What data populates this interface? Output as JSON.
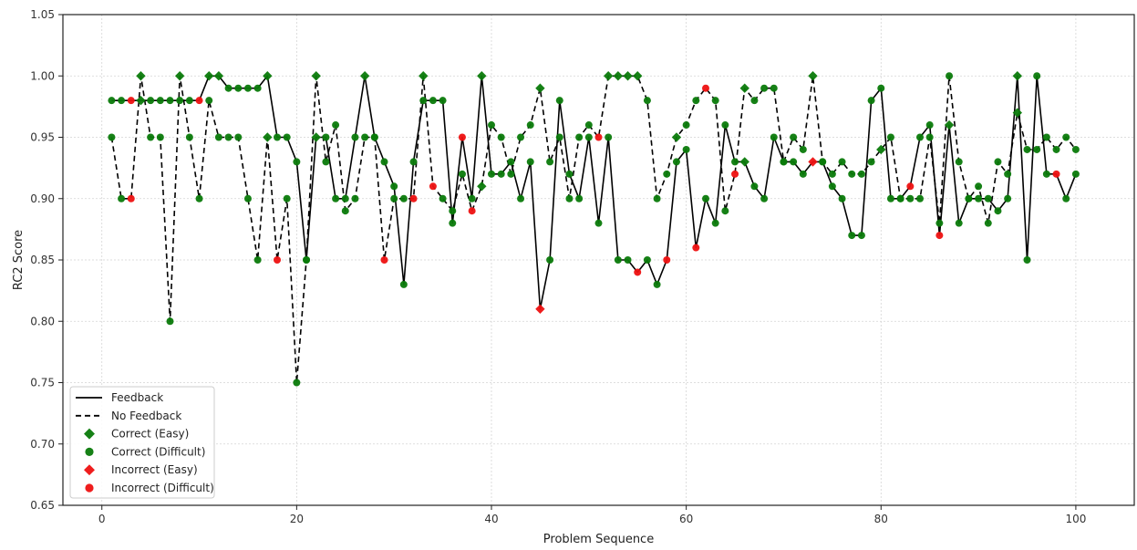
{
  "chart_data": {
    "type": "line",
    "title": "",
    "xlabel": "Problem Sequence",
    "ylabel": "RC2 Score",
    "xlim": [
      -4,
      106
    ],
    "ylim": [
      0.65,
      1.05
    ],
    "xticks": [
      0,
      20,
      40,
      60,
      80,
      100
    ],
    "xtick_labels": [
      "0",
      "20",
      "40",
      "60",
      "80",
      "100"
    ],
    "yticks": [
      0.65,
      0.7,
      0.75,
      0.8,
      0.85,
      0.9,
      0.95,
      1.0,
      1.05
    ],
    "ytick_labels": [
      "0.65",
      "0.70",
      "0.75",
      "0.80",
      "0.85",
      "0.90",
      "0.95",
      "1.00",
      "1.05"
    ],
    "grid": true,
    "legend_position": "lower-left",
    "colors": {
      "line": "#000000",
      "correct": "#0a7a0a",
      "incorrect": "#ee1111"
    },
    "legend": [
      {
        "label": "Feedback",
        "kind": "line-solid"
      },
      {
        "label": "No Feedback",
        "kind": "line-dashed"
      },
      {
        "label": "Correct (Easy)",
        "kind": "diamond",
        "color": "#0a7a0a"
      },
      {
        "label": "Correct (Difficult)",
        "kind": "circle",
        "color": "#0a7a0a"
      },
      {
        "label": "Incorrect (Easy)",
        "kind": "diamond",
        "color": "#ee1111"
      },
      {
        "label": "Incorrect (Difficult)",
        "kind": "circle",
        "color": "#ee1111"
      }
    ],
    "series": [
      {
        "name": "Feedback",
        "style": "solid",
        "x": [
          1,
          2,
          3,
          4,
          5,
          6,
          7,
          8,
          9,
          10,
          11,
          12,
          13,
          14,
          15,
          16,
          17,
          18,
          19,
          20,
          21,
          22,
          23,
          24,
          25,
          26,
          27,
          28,
          29,
          30,
          31,
          32,
          33,
          34,
          35,
          36,
          37,
          38,
          39,
          40,
          41,
          42,
          43,
          44,
          45,
          46,
          47,
          48,
          49,
          50,
          51,
          52,
          53,
          54,
          55,
          56,
          57,
          58,
          59,
          60,
          61,
          62,
          63,
          64,
          65,
          66,
          67,
          68,
          69,
          70,
          71,
          72,
          73,
          74,
          75,
          76,
          77,
          78,
          79,
          80,
          81,
          82,
          83,
          84,
          85,
          86,
          87,
          88,
          89,
          90,
          91,
          92,
          93,
          94,
          95,
          96,
          97,
          98,
          99,
          100
        ],
        "y": [
          0.98,
          0.98,
          0.98,
          0.98,
          0.98,
          0.98,
          0.98,
          0.98,
          0.98,
          0.98,
          1.0,
          1.0,
          0.99,
          0.99,
          0.99,
          0.99,
          1.0,
          0.95,
          0.95,
          0.93,
          0.85,
          0.95,
          0.95,
          0.9,
          0.9,
          0.95,
          1.0,
          0.95,
          0.93,
          0.91,
          0.83,
          0.93,
          0.98,
          0.98,
          0.98,
          0.88,
          0.95,
          0.9,
          1.0,
          0.92,
          0.92,
          0.93,
          0.9,
          0.93,
          0.81,
          0.85,
          0.98,
          0.92,
          0.9,
          0.95,
          0.88,
          0.95,
          0.85,
          0.85,
          0.84,
          0.85,
          0.83,
          0.85,
          0.93,
          0.94,
          0.86,
          0.9,
          0.88,
          0.96,
          0.93,
          0.93,
          0.91,
          0.9,
          0.95,
          0.93,
          0.93,
          0.92,
          0.93,
          0.93,
          0.91,
          0.9,
          0.87,
          0.87,
          0.98,
          0.99,
          0.9,
          0.9,
          0.91,
          0.95,
          0.96,
          0.87,
          0.96,
          0.88,
          0.9,
          0.9,
          0.9,
          0.89,
          0.9,
          1.0,
          0.85,
          1.0,
          0.92,
          0.92,
          0.9,
          0.92
        ],
        "marker": [
          "cd",
          "cd",
          "id",
          "ce",
          "cd",
          "cd",
          "cd",
          "cd",
          "cd",
          "id",
          "ce",
          "ce",
          "cd",
          "cd",
          "cd",
          "cd",
          "ce",
          "cd",
          "cd",
          "cd",
          "cd",
          "ce",
          "cd",
          "cd",
          "cd",
          "cd",
          "ce",
          "cd",
          "cd",
          "cd",
          "cd",
          "cd",
          "cd",
          "cd",
          "cd",
          "cd",
          "id",
          "cd",
          "ce",
          "cd",
          "cd",
          "cd",
          "cd",
          "cd",
          "ie",
          "cd",
          "cd",
          "cd",
          "cd",
          "cd",
          "cd",
          "cd",
          "cd",
          "cd",
          "id",
          "cd",
          "cd",
          "id",
          "cd",
          "cd",
          "id",
          "cd",
          "cd",
          "cd",
          "cd",
          "ce",
          "cd",
          "cd",
          "cd",
          "cd",
          "cd",
          "cd",
          "ie",
          "cd",
          "cd",
          "cd",
          "cd",
          "cd",
          "cd",
          "cd",
          "cd",
          "cd",
          "id",
          "cd",
          "cd",
          "id",
          "ce",
          "cd",
          "cd",
          "cd",
          "cd",
          "cd",
          "cd",
          "ce",
          "cd",
          "cd",
          "cd",
          "id",
          "cd",
          "cd"
        ]
      },
      {
        "name": "No Feedback",
        "style": "dashed",
        "x": [
          1,
          2,
          3,
          4,
          5,
          6,
          7,
          8,
          9,
          10,
          11,
          12,
          13,
          14,
          15,
          16,
          17,
          18,
          19,
          20,
          21,
          22,
          23,
          24,
          25,
          26,
          27,
          28,
          29,
          30,
          31,
          32,
          33,
          34,
          35,
          36,
          37,
          38,
          39,
          40,
          41,
          42,
          43,
          44,
          45,
          46,
          47,
          48,
          49,
          50,
          51,
          52,
          53,
          54,
          55,
          56,
          57,
          58,
          59,
          60,
          61,
          62,
          63,
          64,
          65,
          66,
          67,
          68,
          69,
          70,
          71,
          72,
          73,
          74,
          75,
          76,
          77,
          78,
          79,
          80,
          81,
          82,
          83,
          84,
          85,
          86,
          87,
          88,
          89,
          90,
          91,
          92,
          93,
          94,
          95,
          96,
          97,
          98,
          99,
          100
        ],
        "y": [
          0.95,
          0.9,
          0.9,
          1.0,
          0.95,
          0.95,
          0.8,
          1.0,
          0.95,
          0.9,
          0.98,
          0.95,
          0.95,
          0.95,
          0.9,
          0.85,
          0.95,
          0.85,
          0.9,
          0.75,
          0.85,
          1.0,
          0.93,
          0.96,
          0.89,
          0.9,
          0.95,
          0.95,
          0.85,
          0.9,
          0.9,
          0.9,
          1.0,
          0.91,
          0.9,
          0.89,
          0.92,
          0.89,
          0.91,
          0.96,
          0.95,
          0.92,
          0.95,
          0.96,
          0.99,
          0.93,
          0.95,
          0.9,
          0.95,
          0.96,
          0.95,
          1.0,
          1.0,
          1.0,
          1.0,
          0.98,
          0.9,
          0.92,
          0.95,
          0.96,
          0.98,
          0.99,
          0.98,
          0.89,
          0.92,
          0.99,
          0.98,
          0.99,
          0.99,
          0.93,
          0.95,
          0.94,
          1.0,
          0.93,
          0.92,
          0.93,
          0.92,
          0.92,
          0.93,
          0.94,
          0.95,
          0.9,
          0.9,
          0.9,
          0.95,
          0.88,
          1.0,
          0.93,
          0.9,
          0.91,
          0.88,
          0.93,
          0.92,
          0.97,
          0.94,
          0.94,
          0.95,
          0.94,
          0.95,
          0.94
        ],
        "marker": [
          "cd",
          "cd",
          "id",
          "ce",
          "cd",
          "cd",
          "cd",
          "ce",
          "cd",
          "cd",
          "cd",
          "cd",
          "cd",
          "cd",
          "cd",
          "cd",
          "ce",
          "id",
          "cd",
          "cd",
          "cd",
          "ce",
          "cd",
          "cd",
          "cd",
          "cd",
          "cd",
          "cd",
          "id",
          "cd",
          "cd",
          "id",
          "ce",
          "id",
          "cd",
          "cd",
          "cd",
          "id",
          "ce",
          "cd",
          "cd",
          "cd",
          "cd",
          "cd",
          "ce",
          "cd",
          "cd",
          "cd",
          "cd",
          "cd",
          "id",
          "ce",
          "ce",
          "ce",
          "ce",
          "cd",
          "cd",
          "cd",
          "ce",
          "cd",
          "cd",
          "id",
          "cd",
          "cd",
          "id",
          "ce",
          "cd",
          "cd",
          "cd",
          "cd",
          "cd",
          "cd",
          "ce",
          "cd",
          "cd",
          "cd",
          "cd",
          "cd",
          "cd",
          "ce",
          "cd",
          "cd",
          "cd",
          "cd",
          "cd",
          "cd",
          "cd",
          "cd",
          "cd",
          "cd",
          "cd",
          "cd",
          "cd",
          "ce",
          "cd",
          "cd",
          "cd",
          "cd",
          "cd",
          "cd"
        ]
      }
    ]
  }
}
